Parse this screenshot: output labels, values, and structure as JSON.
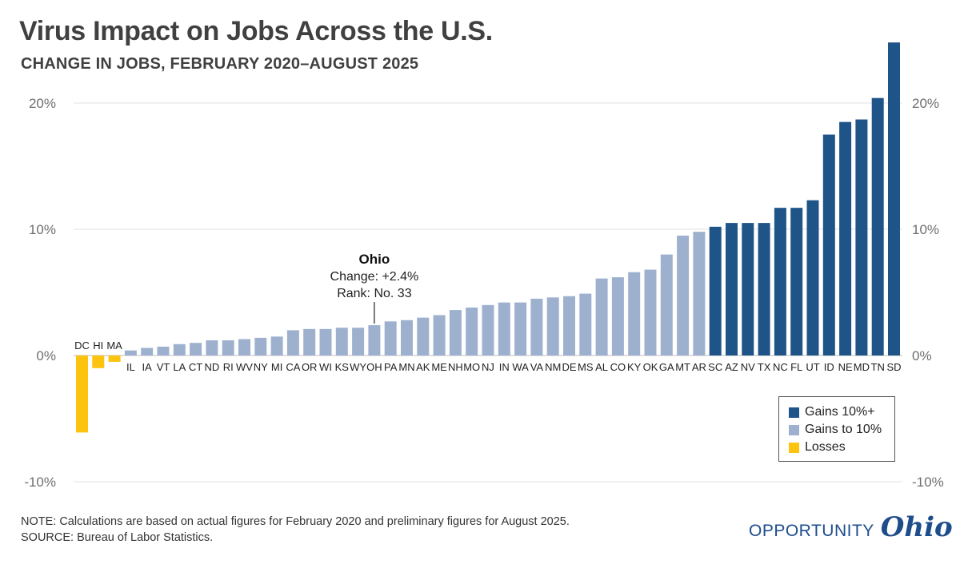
{
  "title": "Virus Impact on Jobs Across the U.S.",
  "subtitle": "CHANGE IN JOBS, FEBRUARY 2020–AUGUST 2025",
  "annotation": {
    "state": "Ohio",
    "change": "Change: +2.4%",
    "rank": "Rank: No. 33"
  },
  "legend": [
    {
      "label": "Gains 10%+",
      "color": "#1f5488"
    },
    {
      "label": "Gains to 10%",
      "color": "#9db1cf"
    },
    {
      "label": "Losses",
      "color": "#fcc30f"
    }
  ],
  "notes": {
    "note": "NOTE: Calculations are based on actual figures for February 2020 and preliminary figures for August 2025.",
    "source": "SOURCE: Bureau of Labor Statistics."
  },
  "logo": {
    "word": "OPPORTUNITY",
    "script": "Ohio"
  },
  "chart_data": {
    "type": "bar",
    "title": "Virus Impact on Jobs Across the U.S.",
    "subtitle": "CHANGE IN JOBS, FEBRUARY 2020–AUGUST 2025",
    "ylim": [
      -10,
      25
    ],
    "yticks": [
      20,
      10,
      0,
      -10
    ],
    "ytick_labels": [
      "20%",
      "10%",
      "0%",
      "-10%"
    ],
    "grid": true,
    "legend_position": "bottom-right",
    "categories": [
      "DC",
      "HI",
      "MA",
      "IL",
      "IA",
      "VT",
      "LA",
      "CT",
      "ND",
      "RI",
      "WV",
      "NY",
      "MI",
      "CA",
      "OR",
      "WI",
      "KS",
      "WY",
      "OH",
      "PA",
      "MN",
      "AK",
      "ME",
      "NH",
      "MO",
      "NJ",
      "IN",
      "WA",
      "VA",
      "NM",
      "DE",
      "MS",
      "AL",
      "CO",
      "KY",
      "OK",
      "GA",
      "MT",
      "AR",
      "SC",
      "AZ",
      "NV",
      "TX",
      "NC",
      "FL",
      "UT",
      "ID",
      "NE",
      "MD",
      "TN",
      "SD"
    ],
    "values": [
      -6.1,
      -1.0,
      -0.5,
      0.4,
      0.6,
      0.7,
      0.9,
      1.0,
      1.2,
      1.2,
      1.3,
      1.4,
      1.5,
      2.0,
      2.1,
      2.1,
      2.2,
      2.2,
      2.4,
      2.7,
      2.8,
      3.0,
      3.2,
      3.6,
      3.8,
      4.0,
      4.2,
      4.2,
      4.5,
      4.6,
      4.7,
      4.9,
      6.1,
      6.2,
      6.6,
      6.8,
      8.0,
      9.5,
      9.8,
      10.2,
      10.5,
      10.5,
      10.5,
      11.7,
      11.7,
      12.3,
      17.5,
      18.5,
      18.7,
      20.4,
      24.8
    ],
    "group_colors": {
      "loss": "#fcc30f",
      "mid": "#9db1cf",
      "high": "#1f5488"
    }
  }
}
